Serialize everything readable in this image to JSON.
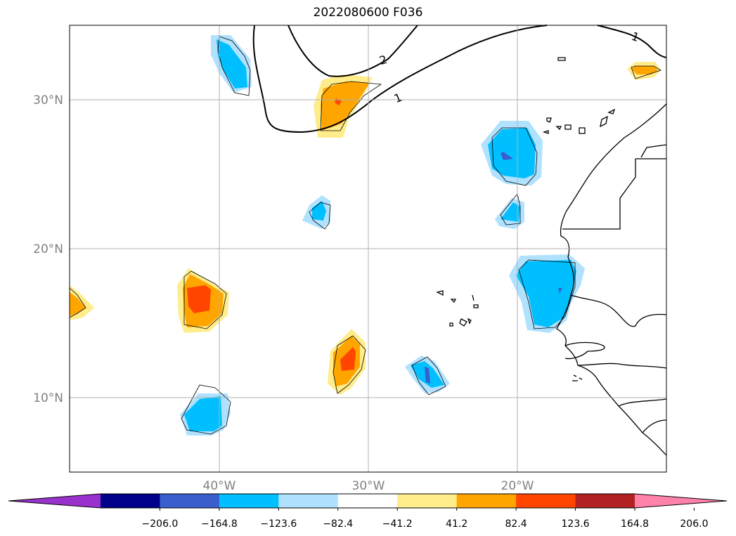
{
  "title": "2022080600 F036",
  "map": {
    "lon_range": [
      -50,
      -10
    ],
    "lat_range": [
      5,
      35
    ],
    "lon_ticks": [
      {
        "lon": -40,
        "label": "40°W"
      },
      {
        "lon": -30,
        "label": "30°W"
      },
      {
        "lon": -20,
        "label": "20°W"
      }
    ],
    "lat_ticks": [
      {
        "lat": 10,
        "label": "10°N"
      },
      {
        "lat": 20,
        "label": "20°N"
      },
      {
        "lat": 30,
        "label": "30°N"
      }
    ],
    "grid": true,
    "contour_labels": [
      {
        "text": "2",
        "lon": -29.0,
        "lat": 32.8
      },
      {
        "text": "1",
        "lon": -28.0,
        "lat": 30.1
      },
      {
        "text": "1",
        "lon": -11.9,
        "lat": 34.5
      }
    ]
  },
  "colorbar": {
    "colors": [
      "#9932cc",
      "#00008b",
      "#3a5fcd",
      "#00bfff",
      "#b0e2ff",
      "#ffffff",
      "#ffec8b",
      "#ffa500",
      "#ff4500",
      "#b22222",
      "#ff82ab"
    ],
    "ticks": [
      "−206.0",
      "−164.8",
      "−123.6",
      "−82.4",
      "−41.2",
      "41.2",
      "82.4",
      "123.6",
      "164.8",
      "206.0"
    ],
    "extend": "both",
    "orientation": "horizontal"
  }
}
